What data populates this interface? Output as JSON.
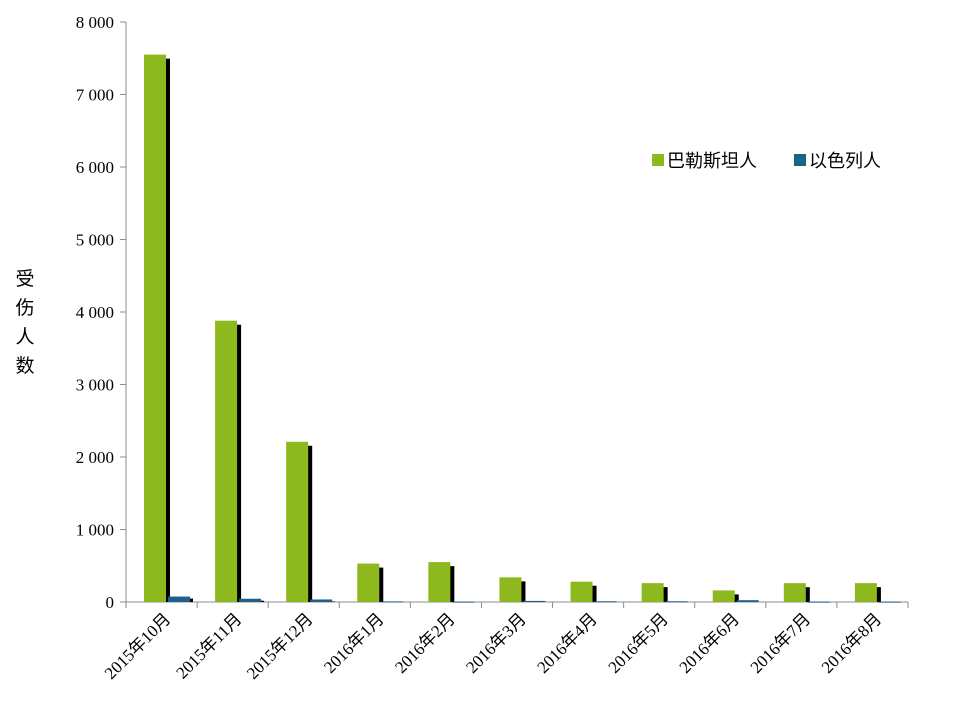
{
  "chart_data": {
    "type": "bar",
    "ylabel": "受伤人数",
    "ylim": [
      0,
      8000
    ],
    "yticks": [
      0,
      1000,
      2000,
      3000,
      4000,
      5000,
      6000,
      7000,
      8000
    ],
    "ytick_labels": [
      "0",
      "1 000",
      "2 000",
      "3 000",
      "4 000",
      "5 000",
      "6 000",
      "7 000",
      "8 000"
    ],
    "categories": [
      "2015年10月",
      "2015年11月",
      "2015年12月",
      "2016年1月",
      "2016年2月",
      "2016年3月",
      "2016年4月",
      "2016年5月",
      "2016年6月",
      "2016年7月",
      "2016年8月"
    ],
    "series": [
      {
        "name": "巴勒斯坦人",
        "color": "#8DB81E",
        "values": [
          7550,
          3880,
          2210,
          530,
          550,
          340,
          280,
          260,
          160,
          260,
          260
        ]
      },
      {
        "name": "以色列人",
        "color": "#1F5F8B",
        "values": [
          75,
          45,
          35,
          8,
          5,
          15,
          10,
          10,
          25,
          5,
          5
        ]
      }
    ],
    "shadow_color": "#000000",
    "grid": false,
    "legend_position": "top-right"
  }
}
